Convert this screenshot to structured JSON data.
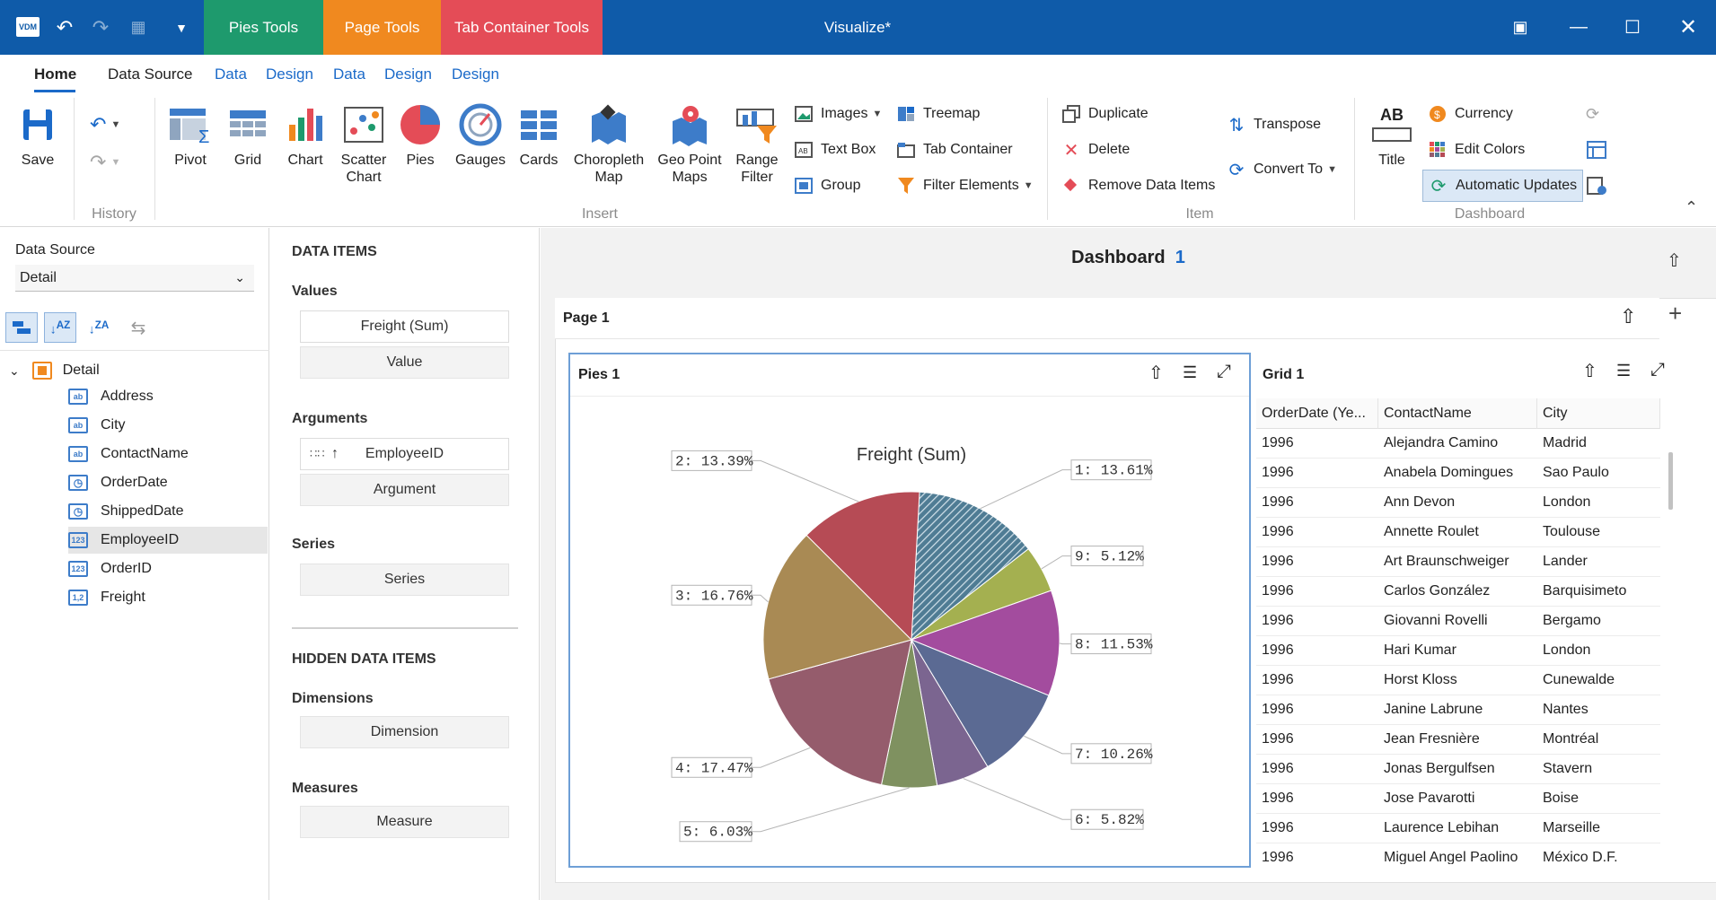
{
  "window": {
    "title": "Visualize*",
    "app_badge": "VDM"
  },
  "context_tabs": [
    {
      "label": "Pies Tools",
      "color": "#1e9a6d"
    },
    {
      "label": "Page Tools",
      "color": "#f0891f"
    },
    {
      "label": "Tab Container Tools",
      "color": "#e44c57"
    }
  ],
  "ribbon_tabs": [
    "Home",
    "Data Source",
    "Data",
    "Design",
    "Data",
    "Design",
    "Design"
  ],
  "ribbon": {
    "save": "Save",
    "history_group": "History",
    "insert_group": "Insert",
    "item_group": "Item",
    "dashboard_group": "Dashboard",
    "insert": [
      "Pivot",
      "Grid",
      "Chart",
      "Scatter Chart",
      "Pies",
      "Gauges",
      "Cards",
      "Choropleth Map",
      "Geo Point Maps",
      "Range Filter"
    ],
    "insert_small": {
      "images": "Images",
      "text_box": "Text Box",
      "group": "Group",
      "treemap": "Treemap",
      "tab_container": "Tab Container",
      "filter_elements": "Filter Elements"
    },
    "item": {
      "duplicate": "Duplicate",
      "delete": "Delete",
      "remove_data_items": "Remove Data Items",
      "transpose": "Transpose",
      "convert_to": "Convert To"
    },
    "dashboard": {
      "title": "Title",
      "title_icon": "AB",
      "currency": "Currency",
      "edit_colors": "Edit Colors",
      "automatic_updates": "Automatic Updates"
    }
  },
  "datasource": {
    "label": "Data Source",
    "selected": "Detail",
    "root": "Detail",
    "fields": [
      {
        "name": "Address",
        "type": "ab"
      },
      {
        "name": "City",
        "type": "ab"
      },
      {
        "name": "ContactName",
        "type": "ab"
      },
      {
        "name": "OrderDate",
        "type": "clock"
      },
      {
        "name": "ShippedDate",
        "type": "clock"
      },
      {
        "name": "EmployeeID",
        "type": "123"
      },
      {
        "name": "OrderID",
        "type": "123"
      },
      {
        "name": "Freight",
        "type": "1,2"
      }
    ]
  },
  "data_items": {
    "header": "DATA ITEMS",
    "values_label": "Values",
    "values": [
      "Freight (Sum)",
      "Value"
    ],
    "arguments_label": "Arguments",
    "arguments": [
      "EmployeeID",
      "Argument"
    ],
    "series_label": "Series",
    "series": [
      "Series"
    ],
    "hidden_header": "HIDDEN DATA ITEMS",
    "dimensions_label": "Dimensions",
    "dimensions": [
      "Dimension"
    ],
    "measures_label": "Measures",
    "measures": [
      "Measure"
    ]
  },
  "dashboard": {
    "title": "Dashboard",
    "title_num": "1",
    "page": "Page 1",
    "pies_title": "Pies 1",
    "grid_title": "Grid 1"
  },
  "chart_data": {
    "type": "pie",
    "title": "Freight (Sum)",
    "slices": [
      {
        "label": "1: 13.61%",
        "value": 13.61,
        "color": "#4f7c94"
      },
      {
        "label": "9: 5.12%",
        "value": 5.12,
        "color": "#a4b050"
      },
      {
        "label": "8: 11.53%",
        "value": 11.53,
        "color": "#a34c9e"
      },
      {
        "label": "7: 10.26%",
        "value": 10.26,
        "color": "#5b6a93"
      },
      {
        "label": "6: 5.82%",
        "value": 5.82,
        "color": "#7b6590"
      },
      {
        "label": "5: 6.03%",
        "value": 6.03,
        "color": "#7f9160"
      },
      {
        "label": "4: 17.47%",
        "value": 17.47,
        "color": "#955c6c"
      },
      {
        "label": "3: 16.76%",
        "value": 16.76,
        "color": "#a98a54"
      },
      {
        "label": "2: 13.39%",
        "value": 13.39,
        "color": "#b64b55"
      }
    ]
  },
  "grid": {
    "columns": [
      "OrderDate (Ye...",
      "ContactName",
      "City"
    ],
    "rows": [
      [
        "1996",
        "Alejandra Camino",
        "Madrid"
      ],
      [
        "1996",
        "Anabela Domingues",
        "Sao Paulo"
      ],
      [
        "1996",
        "Ann Devon",
        "London"
      ],
      [
        "1996",
        "Annette Roulet",
        "Toulouse"
      ],
      [
        "1996",
        "Art Braunschweiger",
        "Lander"
      ],
      [
        "1996",
        "Carlos González",
        "Barquisimeto"
      ],
      [
        "1996",
        "Giovanni Rovelli",
        "Bergamo"
      ],
      [
        "1996",
        "Hari Kumar",
        "London"
      ],
      [
        "1996",
        "Horst Kloss",
        "Cunewalde"
      ],
      [
        "1996",
        "Janine Labrune",
        "Nantes"
      ],
      [
        "1996",
        "Jean Fresnière",
        "Montréal"
      ],
      [
        "1996",
        "Jonas Bergulfsen",
        "Stavern"
      ],
      [
        "1996",
        "Jose Pavarotti",
        "Boise"
      ],
      [
        "1996",
        "Laurence Lebihan",
        "Marseille"
      ],
      [
        "1996",
        "Miguel Angel Paolino",
        "México D.F."
      ]
    ]
  }
}
